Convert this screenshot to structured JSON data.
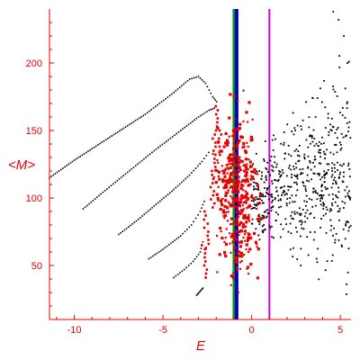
{
  "chart_data": {
    "type": "scatter",
    "title": "",
    "xlabel": "E",
    "ylabel": "<M>",
    "xlim": [
      -11.4,
      5.6
    ],
    "ylim": [
      10,
      240
    ],
    "x_ticks": [
      -10,
      -5,
      0,
      5
    ],
    "x_tick_labels": [
      "-10",
      "-5",
      "0",
      "5"
    ],
    "y_ticks": [
      50,
      100,
      150,
      200
    ],
    "y_tick_labels": [
      "50",
      "100",
      "150",
      "200"
    ],
    "grid": false,
    "colors": {
      "axes": "#e60000",
      "black_series": "#000000",
      "red_series": "#e60000",
      "vline_green": "#00a000",
      "vline_blue": "#0000cc",
      "vline_magenta": "#cc00cc"
    },
    "vertical_lines": [
      {
        "x": -1.0,
        "color": "#00a000"
      },
      {
        "x": -0.85,
        "color": "#0000cc"
      },
      {
        "x": 1.0,
        "color": "#cc00cc"
      }
    ],
    "branches": [
      {
        "x": [
          -11.4,
          -10.0,
          -8.0,
          -6.0,
          -4.5,
          -3.5,
          -3.0,
          -2.6,
          -2.2,
          -1.9
        ],
        "y": [
          115,
          128,
          145,
          162,
          177,
          188,
          190,
          185,
          175,
          170
        ]
      },
      {
        "x": [
          -9.5,
          -8.5,
          -7.0,
          -5.5,
          -4.0,
          -3.0,
          -2.4,
          -2.0
        ],
        "y": [
          92,
          103,
          119,
          135,
          150,
          160,
          165,
          167
        ]
      },
      {
        "x": [
          -7.5,
          -6.5,
          -5.5,
          -4.5,
          -3.5,
          -2.8,
          -2.3
        ],
        "y": [
          73,
          83,
          94,
          105,
          117,
          127,
          136
        ]
      },
      {
        "x": [
          -5.8,
          -5.0,
          -4.0,
          -3.4,
          -2.9,
          -2.6
        ],
        "y": [
          55,
          62,
          72,
          80,
          90,
          100
        ]
      },
      {
        "x": [
          -4.4,
          -3.8,
          -3.3,
          -2.9,
          -2.7
        ],
        "y": [
          41,
          47,
          53,
          60,
          70
        ]
      },
      {
        "x": [
          -3.1,
          -2.9,
          -2.7
        ],
        "y": [
          28,
          31,
          34
        ]
      }
    ],
    "black_cloud": {
      "x_range": [
        0.0,
        5.6
      ],
      "y_center": 102,
      "spread_min": 22,
      "spread_max": 75,
      "top_x": [
        4.6,
        4.9,
        5.2,
        5.4
      ],
      "top_y": [
        238,
        232,
        220,
        200
      ]
    },
    "red_cluster": {
      "x_range": [
        -2.2,
        1.0
      ],
      "y_range": [
        30,
        185
      ]
    }
  }
}
